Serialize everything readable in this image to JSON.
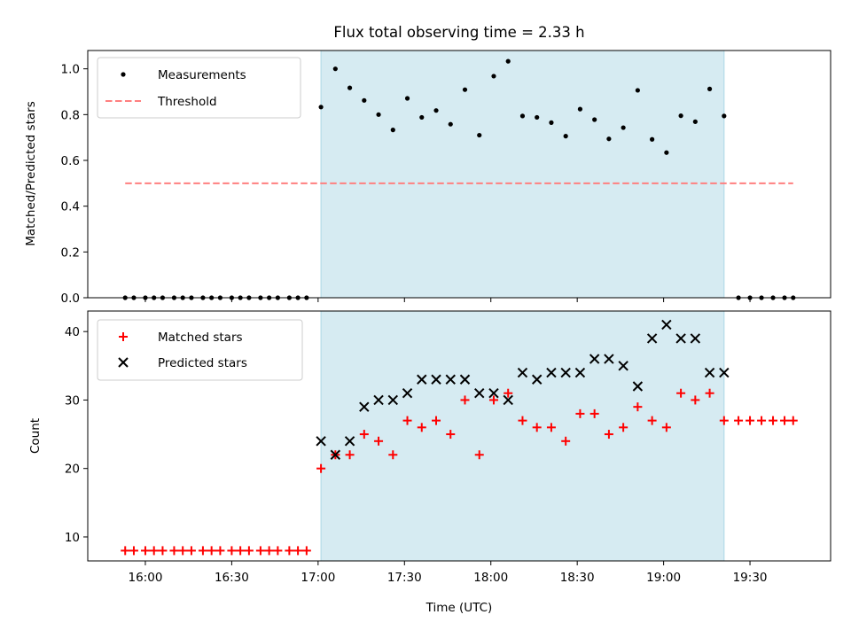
{
  "chart_data": [
    {
      "type": "scatter",
      "title": "Flux total observing time = 2.33 h",
      "ylabel": "Matched/Predicted stars",
      "xlabel": "",
      "ylim": [
        0,
        1.08
      ],
      "yticks": [
        0.0,
        0.2,
        0.4,
        0.6,
        0.8,
        1.0
      ],
      "ytick_labels": [
        "0.0",
        "0.2",
        "0.4",
        "0.6",
        "0.8",
        "1.0"
      ],
      "legend_position": "top-left",
      "observing_window": {
        "start": "17:01",
        "end": "19:21",
        "color": "#add8e6"
      },
      "threshold": {
        "name": "Threshold",
        "value": 0.5,
        "x_start": "15:53",
        "x_end": "19:45",
        "color": "#ff7f7f",
        "style": "dashed"
      },
      "series": [
        {
          "name": "Measurements",
          "marker": "dot",
          "color": "#000000",
          "x": [
            "15:53",
            "15:56",
            "16:00",
            "16:03",
            "16:06",
            "16:10",
            "16:13",
            "16:16",
            "16:20",
            "16:23",
            "16:26",
            "16:30",
            "16:33",
            "16:36",
            "16:40",
            "16:43",
            "16:46",
            "16:50",
            "16:53",
            "16:56",
            "17:01",
            "17:06",
            "17:11",
            "17:16",
            "17:21",
            "17:26",
            "17:31",
            "17:36",
            "17:41",
            "17:46",
            "17:51",
            "17:56",
            "18:01",
            "18:06",
            "18:11",
            "18:16",
            "18:21",
            "18:26",
            "18:31",
            "18:36",
            "18:41",
            "18:46",
            "18:51",
            "18:56",
            "19:01",
            "19:06",
            "19:11",
            "19:16",
            "19:21",
            "19:26",
            "19:30",
            "19:34",
            "19:38",
            "19:42",
            "19:45"
          ],
          "y": [
            0,
            0,
            0,
            0,
            0,
            0,
            0,
            0,
            0,
            0,
            0,
            0,
            0,
            0,
            0,
            0,
            0,
            0,
            0,
            0,
            0.833,
            1.0,
            0.917,
            0.862,
            0.8,
            0.733,
            0.871,
            0.788,
            0.818,
            0.758,
            0.909,
            0.71,
            0.968,
            1.033,
            0.794,
            0.788,
            0.765,
            0.706,
            0.824,
            0.778,
            0.694,
            0.743,
            0.906,
            0.692,
            0.634,
            0.795,
            0.769,
            0.912,
            0.794,
            0,
            0,
            0,
            0,
            0,
            0
          ]
        }
      ]
    },
    {
      "type": "scatter",
      "xlabel": "Time (UTC)",
      "ylabel": "Count",
      "ylim": [
        6.5,
        43
      ],
      "yticks": [
        10,
        20,
        30,
        40
      ],
      "ytick_labels": [
        "10",
        "20",
        "30",
        "40"
      ],
      "x_range": [
        "15:40",
        "19:58"
      ],
      "xticks": [
        "16:00",
        "16:30",
        "17:00",
        "17:30",
        "18:00",
        "18:30",
        "19:00",
        "19:30"
      ],
      "legend_position": "top-left",
      "series": [
        {
          "name": "Matched stars",
          "marker": "plus",
          "color": "#ff0000",
          "x": [
            "15:53",
            "15:56",
            "16:00",
            "16:03",
            "16:06",
            "16:10",
            "16:13",
            "16:16",
            "16:20",
            "16:23",
            "16:26",
            "16:30",
            "16:33",
            "16:36",
            "16:40",
            "16:43",
            "16:46",
            "16:50",
            "16:53",
            "16:56",
            "17:01",
            "17:06",
            "17:11",
            "17:16",
            "17:21",
            "17:26",
            "17:31",
            "17:36",
            "17:41",
            "17:46",
            "17:51",
            "17:56",
            "18:01",
            "18:06",
            "18:11",
            "18:16",
            "18:21",
            "18:26",
            "18:31",
            "18:36",
            "18:41",
            "18:46",
            "18:51",
            "18:56",
            "19:01",
            "19:06",
            "19:11",
            "19:16",
            "19:21",
            "19:26",
            "19:30",
            "19:34",
            "19:38",
            "19:42",
            "19:45"
          ],
          "y": [
            8,
            8,
            8,
            8,
            8,
            8,
            8,
            8,
            8,
            8,
            8,
            8,
            8,
            8,
            8,
            8,
            8,
            8,
            8,
            8,
            20,
            22,
            22,
            25,
            24,
            22,
            27,
            26,
            27,
            25,
            30,
            22,
            30,
            31,
            27,
            26,
            26,
            24,
            28,
            28,
            25,
            26,
            29,
            27,
            26,
            31,
            30,
            31,
            27,
            27,
            27,
            27,
            27,
            27,
            27
          ]
        },
        {
          "name": "Predicted stars",
          "marker": "x",
          "color": "#000000",
          "x": [
            "17:01",
            "17:06",
            "17:11",
            "17:16",
            "17:21",
            "17:26",
            "17:31",
            "17:36",
            "17:41",
            "17:46",
            "17:51",
            "17:56",
            "18:01",
            "18:06",
            "18:11",
            "18:16",
            "18:21",
            "18:26",
            "18:31",
            "18:36",
            "18:41",
            "18:46",
            "18:51",
            "18:56",
            "19:01",
            "19:06",
            "19:11",
            "19:16",
            "19:21"
          ],
          "y": [
            24,
            22,
            24,
            29,
            30,
            30,
            31,
            33,
            33,
            33,
            33,
            31,
            31,
            30,
            34,
            33,
            34,
            34,
            34,
            36,
            36,
            35,
            32,
            39,
            41,
            39,
            39,
            34,
            34
          ]
        }
      ]
    }
  ]
}
